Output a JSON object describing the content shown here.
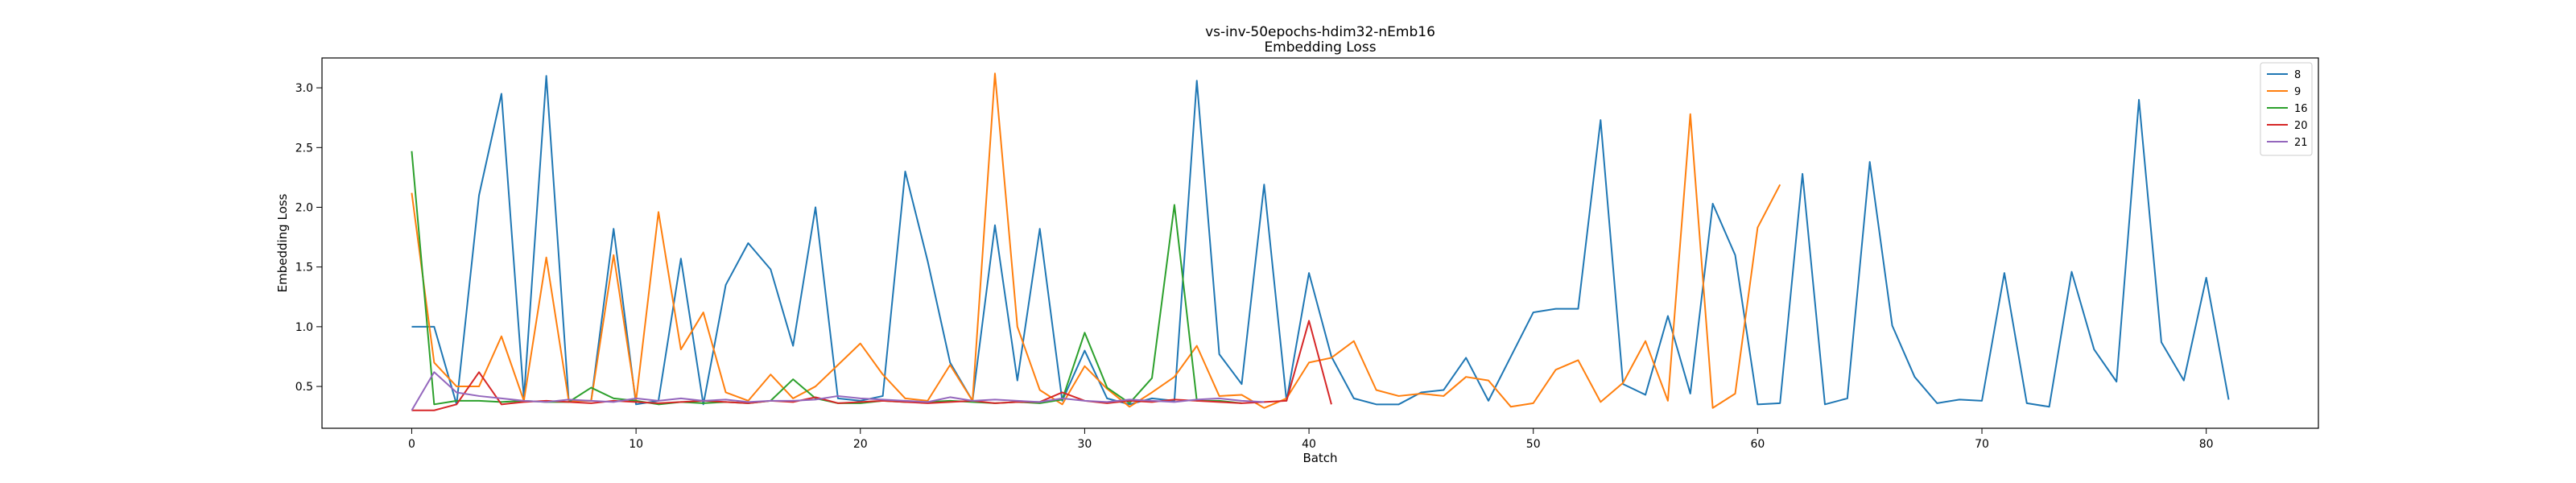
{
  "chart_data": {
    "type": "line",
    "title": "vs-inv-50epochs-hdim32-nEmb16",
    "subtitle": "Embedding Loss",
    "xlabel": "Batch",
    "ylabel": "Embedding Loss",
    "xlim": [
      -4,
      85
    ],
    "ylim": [
      0.15,
      3.25
    ],
    "xticks": [
      0,
      10,
      20,
      30,
      40,
      50,
      60,
      70,
      80
    ],
    "yticks": [
      0.5,
      1.0,
      1.5,
      2.0,
      2.5,
      3.0
    ],
    "ytick_labels": [
      "0.5",
      "1.0",
      "1.5",
      "2.0",
      "2.5",
      "3.0"
    ],
    "grid": false,
    "legend_position": "top-right",
    "series": [
      {
        "name": "8",
        "color": "#1f77b4",
        "values": [
          1.0,
          1.0,
          0.35,
          2.1,
          2.95,
          0.4,
          3.1,
          0.38,
          0.38,
          1.82,
          0.35,
          0.38,
          1.57,
          0.35,
          1.35,
          1.7,
          1.48,
          0.84,
          2.0,
          0.4,
          0.38,
          0.42,
          2.3,
          1.55,
          0.7,
          0.38,
          1.85,
          0.55,
          1.82,
          0.38,
          0.8,
          0.4,
          0.35,
          0.4,
          0.38,
          3.06,
          0.77,
          0.52,
          2.19,
          0.38,
          1.45,
          0.75,
          0.4,
          0.35,
          0.35,
          0.45,
          0.47,
          0.74,
          0.38,
          0.75,
          1.12,
          1.15,
          1.15,
          2.73,
          0.52,
          0.43,
          1.09,
          0.44,
          2.03,
          1.6,
          0.35,
          0.36,
          2.28,
          0.35,
          0.4,
          2.38,
          1.01,
          0.58,
          0.36,
          0.39,
          0.38,
          1.45,
          0.36,
          0.33,
          1.46,
          0.81,
          0.54,
          2.9,
          0.87,
          0.55,
          1.41,
          0.39
        ]
      },
      {
        "name": "9",
        "color": "#ff7f0e",
        "values": [
          2.12,
          0.7,
          0.5,
          0.5,
          0.92,
          0.38,
          1.58,
          0.38,
          0.38,
          1.6,
          0.38,
          1.96,
          0.81,
          1.12,
          0.45,
          0.38,
          0.6,
          0.4,
          0.5,
          0.68,
          0.86,
          0.6,
          0.4,
          0.38,
          0.68,
          0.38,
          3.12,
          1.0,
          0.47,
          0.35,
          0.67,
          0.48,
          0.33,
          0.45,
          0.58,
          0.84,
          0.42,
          0.43,
          0.32,
          0.4,
          0.7,
          0.74,
          0.88,
          0.47,
          0.42,
          0.44,
          0.42,
          0.58,
          0.55,
          0.33,
          0.36,
          0.64,
          0.72,
          0.37,
          0.53,
          0.88,
          0.38,
          2.78,
          0.32,
          0.44,
          1.83,
          2.19
        ]
      },
      {
        "name": "16",
        "color": "#2ca02c",
        "values": [
          2.47,
          0.35,
          0.38,
          0.38,
          0.37,
          0.38,
          0.37,
          0.37,
          0.49,
          0.4,
          0.38,
          0.35,
          0.37,
          0.36,
          0.37,
          0.36,
          0.38,
          0.56,
          0.4,
          0.36,
          0.36,
          0.38,
          0.37,
          0.37,
          0.38,
          0.37,
          0.36,
          0.37,
          0.36,
          0.39,
          0.95,
          0.49,
          0.36,
          0.57,
          2.02,
          0.38,
          0.38,
          0.36
        ]
      },
      {
        "name": "20",
        "color": "#d62728",
        "values": [
          0.3,
          0.3,
          0.35,
          0.62,
          0.35,
          0.37,
          0.38,
          0.37,
          0.36,
          0.38,
          0.37,
          0.36,
          0.37,
          0.38,
          0.37,
          0.36,
          0.38,
          0.37,
          0.41,
          0.36,
          0.37,
          0.38,
          0.37,
          0.36,
          0.37,
          0.38,
          0.36,
          0.37,
          0.37,
          0.45,
          0.38,
          0.36,
          0.38,
          0.37,
          0.39,
          0.38,
          0.37,
          0.36,
          0.37,
          0.38,
          1.05,
          0.35
        ]
      },
      {
        "name": "21",
        "color": "#9467bd",
        "values": [
          0.3,
          0.62,
          0.45,
          0.42,
          0.4,
          0.38,
          0.37,
          0.39,
          0.38,
          0.37,
          0.4,
          0.38,
          0.4,
          0.38,
          0.39,
          0.37,
          0.38,
          0.38,
          0.39,
          0.42,
          0.4,
          0.39,
          0.38,
          0.37,
          0.41,
          0.38,
          0.39,
          0.38,
          0.37,
          0.4,
          0.38,
          0.37,
          0.39,
          0.38,
          0.37,
          0.39,
          0.4,
          0.38,
          0.37
        ]
      }
    ]
  }
}
